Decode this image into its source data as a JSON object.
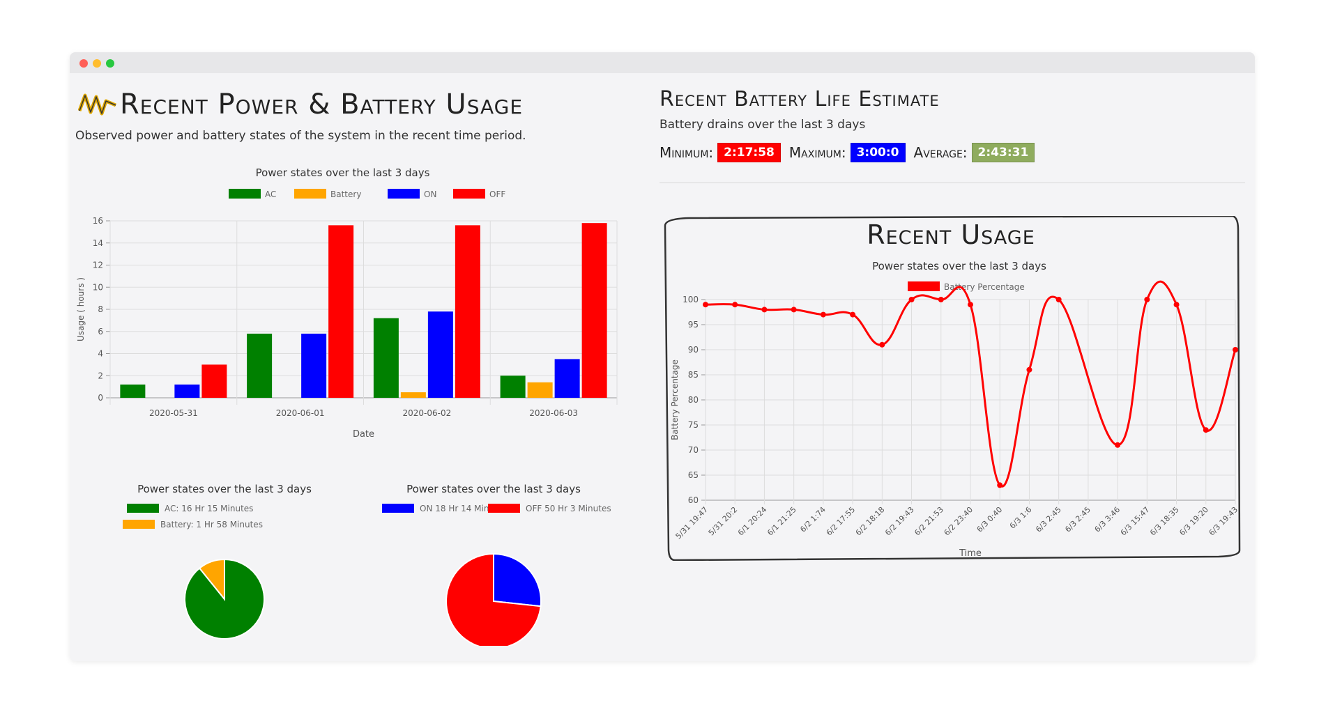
{
  "header": {
    "title": "Recent Power & Battery Usage",
    "subtitle": "Observed power and battery states of the system in the recent time period."
  },
  "battery_estimate": {
    "title": "Recent Battery Life Estimate",
    "subtitle": "Battery drains over the last 3 days",
    "min_label": "Minimum:",
    "min_value": "2:17:58",
    "max_label": "Maximum:",
    "max_value": "3:00:0",
    "avg_label": "Average:",
    "avg_value": "2:43:31",
    "colors": {
      "min": "#ff0000",
      "max": "#0000ff",
      "avg": "#8fac5e"
    }
  },
  "recent_usage_card": {
    "title": "Recent Usage"
  },
  "chart_data": [
    {
      "type": "bar",
      "title": "Power states over the last 3 days",
      "xlabel": "Date",
      "ylabel": "Usage ( hours )",
      "ylim": [
        0,
        16
      ],
      "yticks": [
        0,
        2,
        4,
        6,
        8,
        10,
        12,
        14,
        16
      ],
      "categories": [
        "2020-05-31",
        "2020-06-01",
        "2020-06-02",
        "2020-06-03"
      ],
      "series": [
        {
          "name": "AC",
          "color": "#008000",
          "values": [
            1.2,
            5.8,
            7.2,
            2.0
          ]
        },
        {
          "name": "Battery",
          "color": "#ffa500",
          "values": [
            0,
            0,
            0.5,
            1.4
          ]
        },
        {
          "name": "ON",
          "color": "#0000ff",
          "values": [
            1.2,
            5.8,
            7.8,
            3.5
          ]
        },
        {
          "name": "OFF",
          "color": "#ff0000",
          "values": [
            3.0,
            15.6,
            15.6,
            15.8
          ]
        }
      ],
      "grid": true,
      "legend": "top"
    },
    {
      "type": "pie",
      "title": "Power states over the last 3 days",
      "slices": [
        {
          "name": "AC: 16 Hr 15 Minutes",
          "value": 975,
          "color": "#008000"
        },
        {
          "name": "Battery: 1 Hr 58 Minutes",
          "value": 118,
          "color": "#ffa500"
        }
      ],
      "legend": "top"
    },
    {
      "type": "pie",
      "title": "Power states over the last 3 days",
      "slices": [
        {
          "name": "ON 18 Hr 14 Minutes",
          "value": 1094,
          "color": "#0000ff"
        },
        {
          "name": "OFF 50 Hr 3 Minutes",
          "value": 3003,
          "color": "#ff0000"
        }
      ],
      "legend": "top"
    },
    {
      "type": "line",
      "title": "Power states over the last 3 days",
      "xlabel": "Time",
      "ylabel": "Battery Percentage",
      "ylim": [
        60,
        100
      ],
      "yticks": [
        60,
        65,
        70,
        75,
        80,
        85,
        90,
        95,
        100
      ],
      "x": [
        "5/31 19:47",
        "5/31 20:2",
        "6/1 20:24",
        "6/1 21:25",
        "6/2 1:74",
        "6/2 17:55",
        "6/2 18:18",
        "6/2 19:43",
        "6/2 21:53",
        "6/2 23:40",
        "6/3 0:40",
        "6/3 1:6",
        "6/3 2:45",
        "6/3 2:45",
        "6/3 3:46",
        "6/3 15:47",
        "6/3 18:35",
        "6/3 19:20",
        "6/3 19:43"
      ],
      "series": [
        {
          "name": "Battery Percentage",
          "color": "#ff0000",
          "values": [
            99,
            99,
            98,
            98,
            97,
            97,
            91,
            100,
            100,
            99,
            63,
            86,
            100,
            null,
            71,
            100,
            99,
            74,
            90
          ]
        }
      ],
      "grid": true,
      "legend": "top"
    }
  ]
}
